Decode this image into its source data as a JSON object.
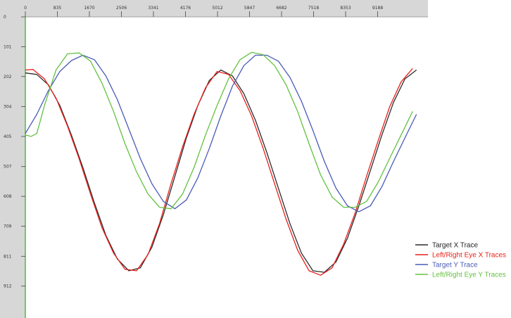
{
  "chart_data": {
    "type": "line",
    "title": "",
    "xlabel": "",
    "ylabel": "",
    "xlim": [
      0,
      10500
    ],
    "ylim": [
      0,
      1020
    ],
    "y_inverted": true,
    "grid": false,
    "legend_placement": "bottom-right",
    "x_ticks": [
      0,
      835,
      1670,
      2506,
      3341,
      4176,
      5012,
      5847,
      6682,
      7518,
      8353,
      9188
    ],
    "x_tick_labels": [
      "0",
      "835",
      "1670",
      "2506",
      "3341",
      "4176",
      "5012",
      "5847",
      "6682",
      "7518",
      "8353",
      "9188"
    ],
    "y_ticks": [
      0,
      101,
      202,
      304,
      405,
      507,
      608,
      709,
      811,
      912
    ],
    "y_tick_labels": [
      "0",
      "101",
      "202",
      "304",
      "405",
      "507",
      "608",
      "709",
      "811",
      "912"
    ],
    "series": [
      {
        "name": "Target X Trace",
        "color": "#2b2b2b",
        "x": [
          0,
          300,
          600,
          900,
          1200,
          1500,
          1800,
          2100,
          2400,
          2700,
          3000,
          3300,
          3600,
          3900,
          4200,
          4500,
          4800,
          5100,
          5400,
          5700,
          6000,
          6300,
          6600,
          6900,
          7200,
          7500,
          7800,
          8100,
          8400,
          8700,
          9000,
          9300,
          9600,
          9900,
          10200
        ],
        "y": [
          190,
          195,
          230,
          300,
          400,
          510,
          630,
          740,
          820,
          860,
          850,
          780,
          670,
          540,
          410,
          300,
          215,
          180,
          200,
          260,
          350,
          460,
          580,
          700,
          800,
          860,
          865,
          830,
          750,
          640,
          520,
          400,
          290,
          210,
          180
        ]
      },
      {
        "name": "Left/Right Eye X Traces",
        "color": "#e8201a",
        "x": [
          0,
          200,
          500,
          800,
          1100,
          1400,
          1700,
          2000,
          2300,
          2600,
          2900,
          3200,
          3500,
          3800,
          4100,
          4400,
          4700,
          5000,
          5300,
          5600,
          5900,
          6200,
          6500,
          6800,
          7100,
          7400,
          7700,
          8000,
          8300,
          8600,
          8900,
          9200,
          9500,
          9800,
          10100
        ],
        "y": [
          180,
          178,
          210,
          275,
          370,
          480,
          600,
          715,
          800,
          855,
          860,
          805,
          700,
          565,
          440,
          330,
          240,
          185,
          195,
          250,
          335,
          445,
          565,
          685,
          790,
          860,
          875,
          850,
          770,
          665,
          540,
          420,
          305,
          220,
          175
        ]
      },
      {
        "name": "Target Y Trace",
        "color": "#4a5bb8",
        "x": [
          0,
          300,
          600,
          900,
          1200,
          1500,
          1800,
          2100,
          2400,
          2700,
          3000,
          3300,
          3600,
          3900,
          4200,
          4500,
          4800,
          5100,
          5400,
          5700,
          6000,
          6300,
          6600,
          6900,
          7200,
          7500,
          7800,
          8100,
          8400,
          8700,
          9000,
          9300,
          9600,
          9900,
          10200
        ],
        "y": [
          395,
          330,
          250,
          185,
          148,
          130,
          145,
          200,
          280,
          380,
          480,
          565,
          625,
          650,
          620,
          545,
          445,
          335,
          235,
          165,
          130,
          130,
          150,
          205,
          285,
          385,
          490,
          580,
          640,
          660,
          640,
          575,
          490,
          410,
          330
        ]
      },
      {
        "name": "Left/Right Eye Y Traces",
        "color": "#63c23f",
        "x": [
          0,
          150,
          300,
          500,
          800,
          1100,
          1400,
          1700,
          2000,
          2300,
          2600,
          2900,
          3200,
          3500,
          3800,
          4100,
          4400,
          4700,
          5000,
          5300,
          5600,
          5900,
          6200,
          6500,
          6800,
          7100,
          7400,
          7700,
          8000,
          8300,
          8600,
          8900,
          9200,
          9500,
          9800,
          10100
        ],
        "y": [
          400,
          405,
          395,
          300,
          180,
          125,
          122,
          150,
          225,
          320,
          430,
          525,
          600,
          645,
          650,
          600,
          510,
          400,
          300,
          210,
          145,
          120,
          128,
          165,
          230,
          320,
          430,
          535,
          610,
          645,
          645,
          625,
          560,
          480,
          400,
          320
        ]
      }
    ]
  }
}
